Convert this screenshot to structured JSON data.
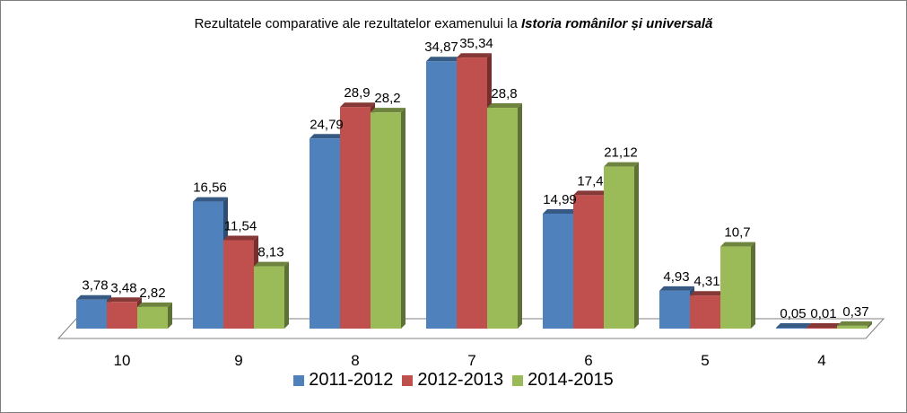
{
  "chart_data": {
    "type": "bar",
    "title": "Rezultatele comparative ale rezultatelor examenului la",
    "title_emphasis": "Istoria românilor și universală",
    "categories": [
      "10",
      "9",
      "8",
      "7",
      "6",
      "5",
      "4"
    ],
    "series": [
      {
        "name": "2011-2012",
        "color": "#4f81bd",
        "values": [
          3.78,
          16.56,
          24.79,
          34.87,
          14.99,
          4.93,
          0.05
        ],
        "labels": [
          "3,78",
          "16,56",
          "24,79",
          "34,87",
          "14,99",
          "4,93",
          "0,05"
        ]
      },
      {
        "name": "2012-2013",
        "color": "#c0504d",
        "values": [
          3.48,
          11.54,
          28.9,
          35.34,
          17.4,
          4.31,
          0.01
        ],
        "labels": [
          "3,48",
          "11,54",
          "28,9",
          "35,34",
          "17,4",
          "4,31",
          "0,01"
        ]
      },
      {
        "name": "2014-2015",
        "color": "#9bbb59",
        "values": [
          2.82,
          8.13,
          28.2,
          28.8,
          21.12,
          10.7,
          0.37
        ],
        "labels": [
          "2,82",
          "8,13",
          "28,2",
          "28,8",
          "21,12",
          "10,7",
          "0,37"
        ]
      }
    ],
    "ylim": [
      0,
      40
    ],
    "legend_position": "bottom",
    "grid": false,
    "style": "3d-clustered-column"
  }
}
